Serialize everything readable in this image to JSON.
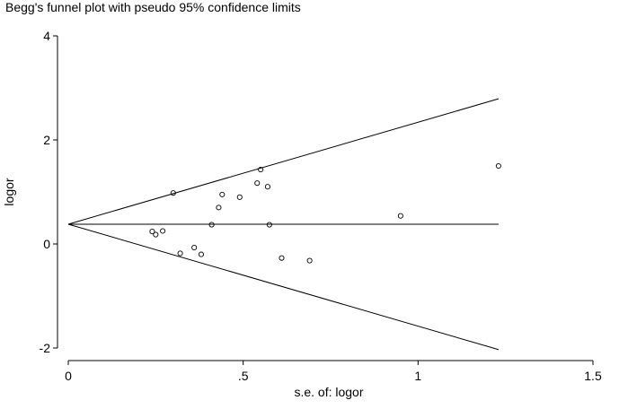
{
  "chart_data": {
    "type": "scatter",
    "title": "Begg's funnel plot with pseudo 95% confidence limits",
    "xlabel": "s.e. of: logor",
    "ylabel": "logor",
    "xlim": [
      0,
      1.5
    ],
    "ylim": [
      -2,
      4
    ],
    "x_ticks": [
      0,
      0.5,
      1,
      1.5
    ],
    "x_tick_labels": [
      "0",
      ".5",
      "1",
      "1.5"
    ],
    "y_ticks": [
      -2,
      0,
      2,
      4
    ],
    "y_tick_labels": [
      "-2",
      "0",
      "2",
      "4"
    ],
    "grid": false,
    "pooled_estimate": 0.38,
    "limits_xmax": 1.23,
    "series": [
      {
        "values": [
          {
            "x": 0.24,
            "y": 0.24
          },
          {
            "x": 0.25,
            "y": 0.18
          },
          {
            "x": 0.27,
            "y": 0.25
          },
          {
            "x": 0.3,
            "y": 0.98
          },
          {
            "x": 0.32,
            "y": -0.18
          },
          {
            "x": 0.36,
            "y": -0.07
          },
          {
            "x": 0.38,
            "y": -0.2
          },
          {
            "x": 0.41,
            "y": 0.37
          },
          {
            "x": 0.43,
            "y": 0.7
          },
          {
            "x": 0.44,
            "y": 0.95
          },
          {
            "x": 0.49,
            "y": 0.9
          },
          {
            "x": 0.54,
            "y": 1.17
          },
          {
            "x": 0.55,
            "y": 1.43
          },
          {
            "x": 0.57,
            "y": 1.1
          },
          {
            "x": 0.575,
            "y": 0.37
          },
          {
            "x": 0.61,
            "y": -0.27
          },
          {
            "x": 0.69,
            "y": -0.32
          },
          {
            "x": 0.95,
            "y": 0.54
          },
          {
            "x": 1.23,
            "y": 1.5
          }
        ]
      }
    ]
  }
}
